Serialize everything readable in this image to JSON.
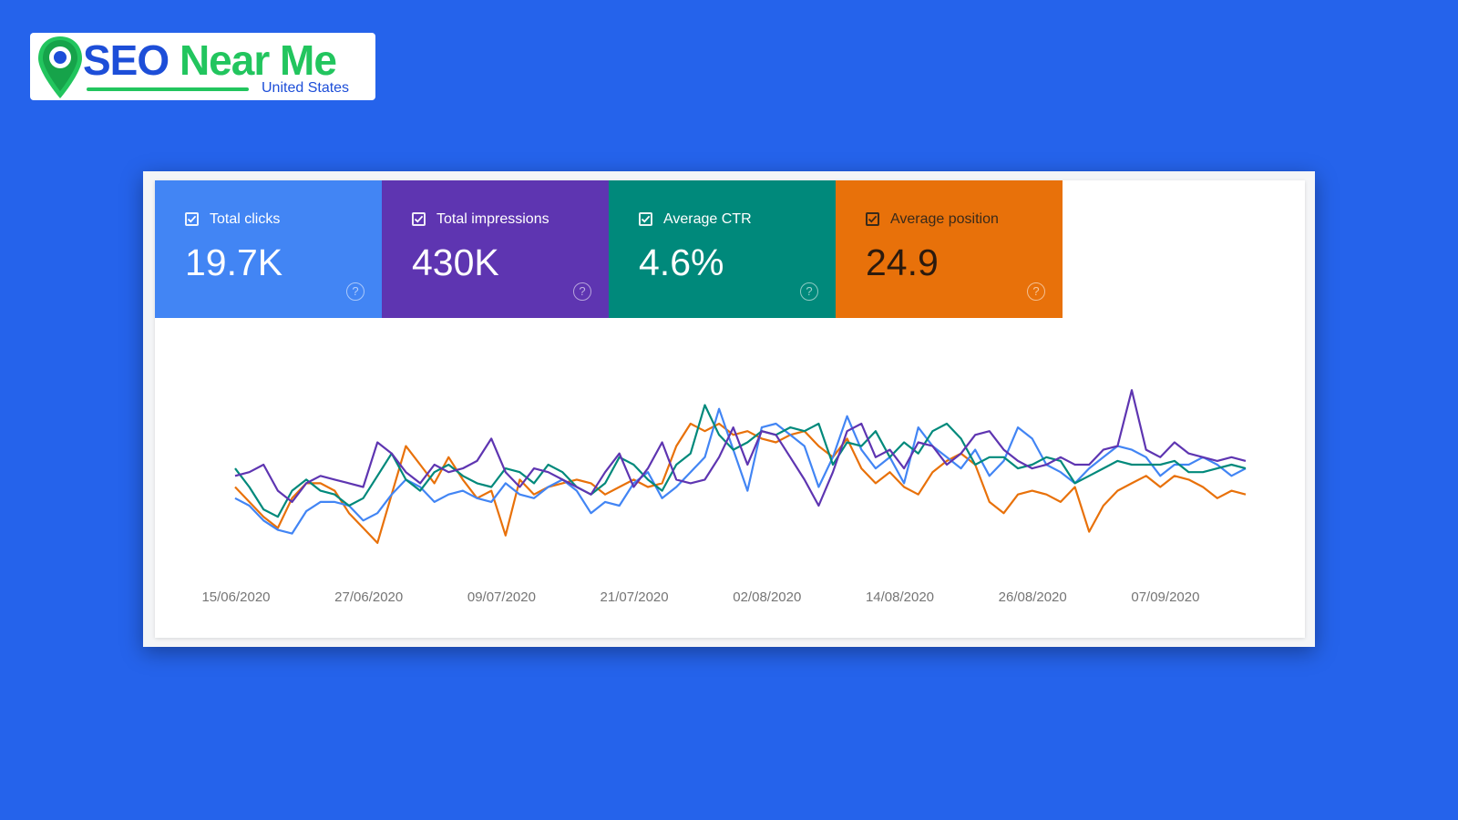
{
  "logo": {
    "brand_part1": "SEO",
    "brand_part2": "Near Me",
    "country": "United States",
    "icon": "map-pin-icon",
    "colors": {
      "blue": "#1d4ed8",
      "green": "#22c55e"
    }
  },
  "metrics": [
    {
      "label": "Total clicks",
      "value": "19.7K",
      "checked": true,
      "color": "#4285f4"
    },
    {
      "label": "Total impressions",
      "value": "430K",
      "checked": true,
      "color": "#5e35b1"
    },
    {
      "label": "Average CTR",
      "value": "4.6%",
      "checked": true,
      "color": "#00897b"
    },
    {
      "label": "Average position",
      "value": "24.9",
      "checked": true,
      "color": "#e8710a"
    }
  ],
  "help_glyph": "?",
  "chart_data": {
    "type": "line",
    "x_tick_labels": [
      "15/06/2020",
      "27/06/2020",
      "09/07/2020",
      "21/07/2020",
      "02/08/2020",
      "14/08/2020",
      "26/08/2020",
      "07/09/2020"
    ],
    "x_start": "15/06/2020",
    "x_end": "14/09/2020",
    "y_axis_visible": false,
    "grid": false,
    "series": [
      {
        "name": "Total clicks",
        "color": "#4285f4",
        "values": [
          0.22,
          0.18,
          0.1,
          0.05,
          0.03,
          0.15,
          0.2,
          0.2,
          0.18,
          0.1,
          0.14,
          0.24,
          0.32,
          0.28,
          0.2,
          0.24,
          0.26,
          0.22,
          0.2,
          0.3,
          0.24,
          0.22,
          0.28,
          0.32,
          0.26,
          0.14,
          0.2,
          0.18,
          0.3,
          0.36,
          0.22,
          0.28,
          0.36,
          0.44,
          0.7,
          0.48,
          0.26,
          0.6,
          0.62,
          0.56,
          0.5,
          0.28,
          0.44,
          0.66,
          0.48,
          0.38,
          0.44,
          0.3,
          0.6,
          0.5,
          0.44,
          0.38,
          0.48,
          0.34,
          0.42,
          0.6,
          0.54,
          0.4,
          0.36,
          0.3,
          0.38,
          0.44,
          0.5,
          0.48,
          0.44,
          0.34,
          0.4,
          0.4,
          0.44,
          0.4,
          0.34,
          0.38
        ]
      },
      {
        "name": "Total impressions",
        "color": "#5e35b1",
        "values": [
          0.34,
          0.36,
          0.4,
          0.26,
          0.2,
          0.3,
          0.34,
          0.32,
          0.3,
          0.28,
          0.52,
          0.46,
          0.36,
          0.3,
          0.4,
          0.36,
          0.38,
          0.42,
          0.54,
          0.36,
          0.28,
          0.38,
          0.36,
          0.32,
          0.28,
          0.24,
          0.36,
          0.46,
          0.28,
          0.38,
          0.52,
          0.32,
          0.3,
          0.32,
          0.44,
          0.6,
          0.4,
          0.58,
          0.56,
          0.44,
          0.32,
          0.18,
          0.36,
          0.58,
          0.62,
          0.44,
          0.48,
          0.38,
          0.52,
          0.5,
          0.4,
          0.46,
          0.56,
          0.58,
          0.48,
          0.42,
          0.38,
          0.4,
          0.44,
          0.4,
          0.4,
          0.48,
          0.5,
          0.8,
          0.48,
          0.44,
          0.52,
          0.46,
          0.44,
          0.42,
          0.44,
          0.42
        ]
      },
      {
        "name": "Average CTR",
        "color": "#00897b",
        "values": [
          0.38,
          0.28,
          0.16,
          0.12,
          0.26,
          0.32,
          0.26,
          0.24,
          0.18,
          0.22,
          0.34,
          0.46,
          0.32,
          0.26,
          0.36,
          0.4,
          0.34,
          0.3,
          0.28,
          0.38,
          0.36,
          0.3,
          0.4,
          0.36,
          0.28,
          0.24,
          0.3,
          0.44,
          0.4,
          0.32,
          0.26,
          0.4,
          0.46,
          0.72,
          0.56,
          0.48,
          0.52,
          0.58,
          0.56,
          0.6,
          0.58,
          0.62,
          0.4,
          0.52,
          0.5,
          0.58,
          0.44,
          0.52,
          0.46,
          0.58,
          0.62,
          0.54,
          0.4,
          0.44,
          0.44,
          0.38,
          0.4,
          0.44,
          0.42,
          0.3,
          0.34,
          0.38,
          0.42,
          0.4,
          0.4,
          0.4,
          0.42,
          0.36,
          0.36,
          0.38,
          0.4,
          0.38
        ]
      },
      {
        "name": "Average position",
        "color": "#e8710a",
        "values": [
          0.28,
          0.2,
          0.12,
          0.06,
          0.22,
          0.3,
          0.3,
          0.26,
          0.14,
          0.06,
          -0.02,
          0.24,
          0.5,
          0.4,
          0.3,
          0.44,
          0.32,
          0.22,
          0.26,
          0.02,
          0.32,
          0.24,
          0.28,
          0.3,
          0.32,
          0.3,
          0.24,
          0.28,
          0.32,
          0.28,
          0.3,
          0.5,
          0.62,
          0.58,
          0.62,
          0.56,
          0.58,
          0.54,
          0.52,
          0.56,
          0.58,
          0.5,
          0.44,
          0.54,
          0.38,
          0.3,
          0.36,
          0.28,
          0.24,
          0.36,
          0.42,
          0.46,
          0.4,
          0.2,
          0.14,
          0.24,
          0.26,
          0.24,
          0.2,
          0.28,
          0.04,
          0.18,
          0.26,
          0.3,
          0.34,
          0.28,
          0.34,
          0.32,
          0.28,
          0.22,
          0.26,
          0.24
        ]
      }
    ]
  }
}
